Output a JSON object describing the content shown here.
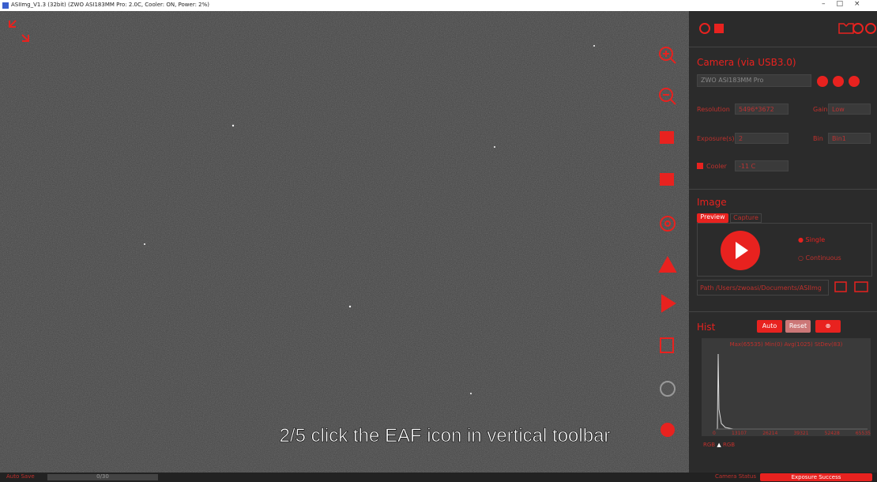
{
  "window": {
    "title": "ASIImg_V1.3 (32bit) (ZWO ASI183MM Pro: 2.0C, Cooler: ON, Power: 2%)"
  },
  "camera": {
    "header": "Camera (via USB3.0)",
    "model": "ZWO ASI183MM Pro",
    "resolution_label": "Resolution",
    "resolution": "5496*3672",
    "gain_label": "Gain",
    "gain": "Low",
    "exposure_label": "Exposure(s)",
    "exposure": "2",
    "bin_label": "Bin",
    "bin": "Bin1",
    "cooler_label": "Cooler",
    "cooler": "-11 C"
  },
  "image": {
    "header": "Image",
    "tabs": [
      "Preview",
      "Capture"
    ],
    "modes": [
      "Single",
      "Continuous"
    ],
    "path_label": "Path",
    "path": "/Users/zwoasi/Documents/ASIImg"
  },
  "hist": {
    "header": "Hist",
    "buttons": [
      "Auto",
      "Reset"
    ],
    "stats": "Max(65535) Min(0) Avg(1025) StDev(83)",
    "axis": [
      "0",
      "13107",
      "26214",
      "39321",
      "52428",
      "65535"
    ],
    "legend": [
      "RGB",
      "RGB"
    ]
  },
  "caption": "2/5 click the EAF icon in vertical toolbar",
  "status": {
    "left": "Auto Save",
    "progress": "0/30",
    "right_label": "Camera Status",
    "message": "Exposure Success"
  }
}
